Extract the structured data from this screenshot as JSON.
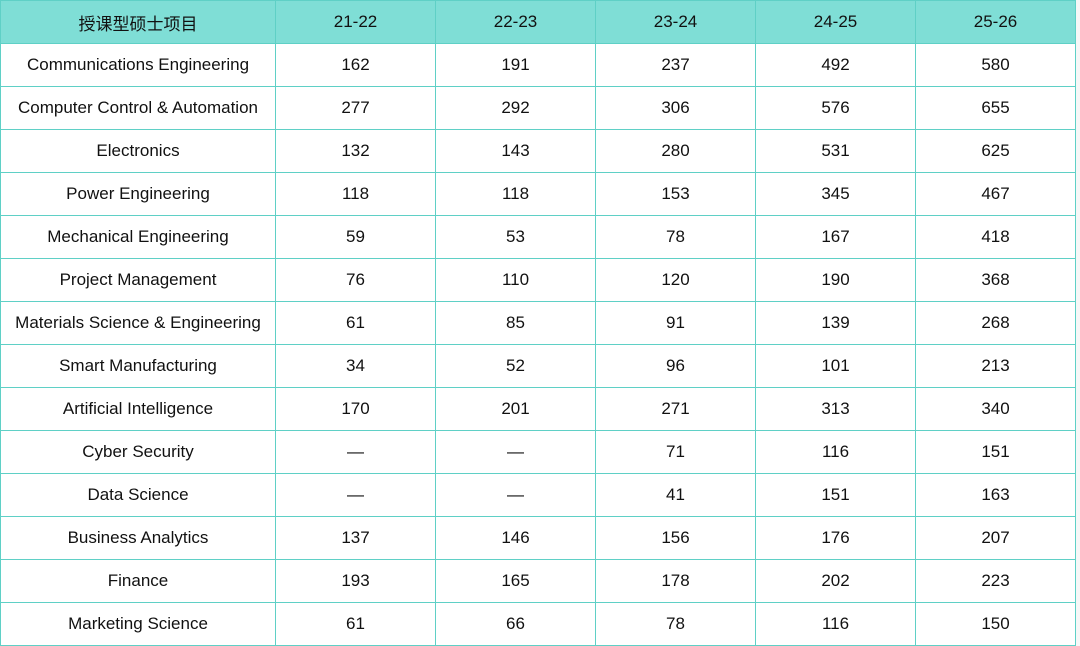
{
  "table": {
    "header": [
      "授课型硕士项目",
      "21-22",
      "22-23",
      "23-24",
      "24-25",
      "25-26"
    ],
    "rows": [
      [
        "Communications Engineering",
        162,
        191,
        237,
        492,
        580
      ],
      [
        "Computer Control & Automation",
        277,
        292,
        306,
        576,
        655
      ],
      [
        "Electronics",
        132,
        143,
        280,
        531,
        625
      ],
      [
        "Power Engineering",
        118,
        118,
        153,
        345,
        467
      ],
      [
        "Mechanical Engineering",
        59,
        53,
        78,
        167,
        418
      ],
      [
        "Project Management",
        76,
        110,
        120,
        190,
        368
      ],
      [
        "Materials Science & Engineering",
        61,
        85,
        91,
        139,
        268
      ],
      [
        "Smart Manufacturing",
        34,
        52,
        96,
        101,
        213
      ],
      [
        "Artificial Intelligence",
        170,
        201,
        271,
        313,
        340
      ],
      [
        "Cyber Security",
        "—",
        "—",
        71,
        116,
        151
      ],
      [
        "Data Science",
        "—",
        "—",
        41,
        151,
        163
      ],
      [
        "Business Analytics",
        137,
        146,
        156,
        176,
        207
      ],
      [
        "Finance",
        193,
        165,
        178,
        202,
        223
      ],
      [
        "Marketing Science",
        61,
        66,
        78,
        116,
        150
      ]
    ]
  }
}
